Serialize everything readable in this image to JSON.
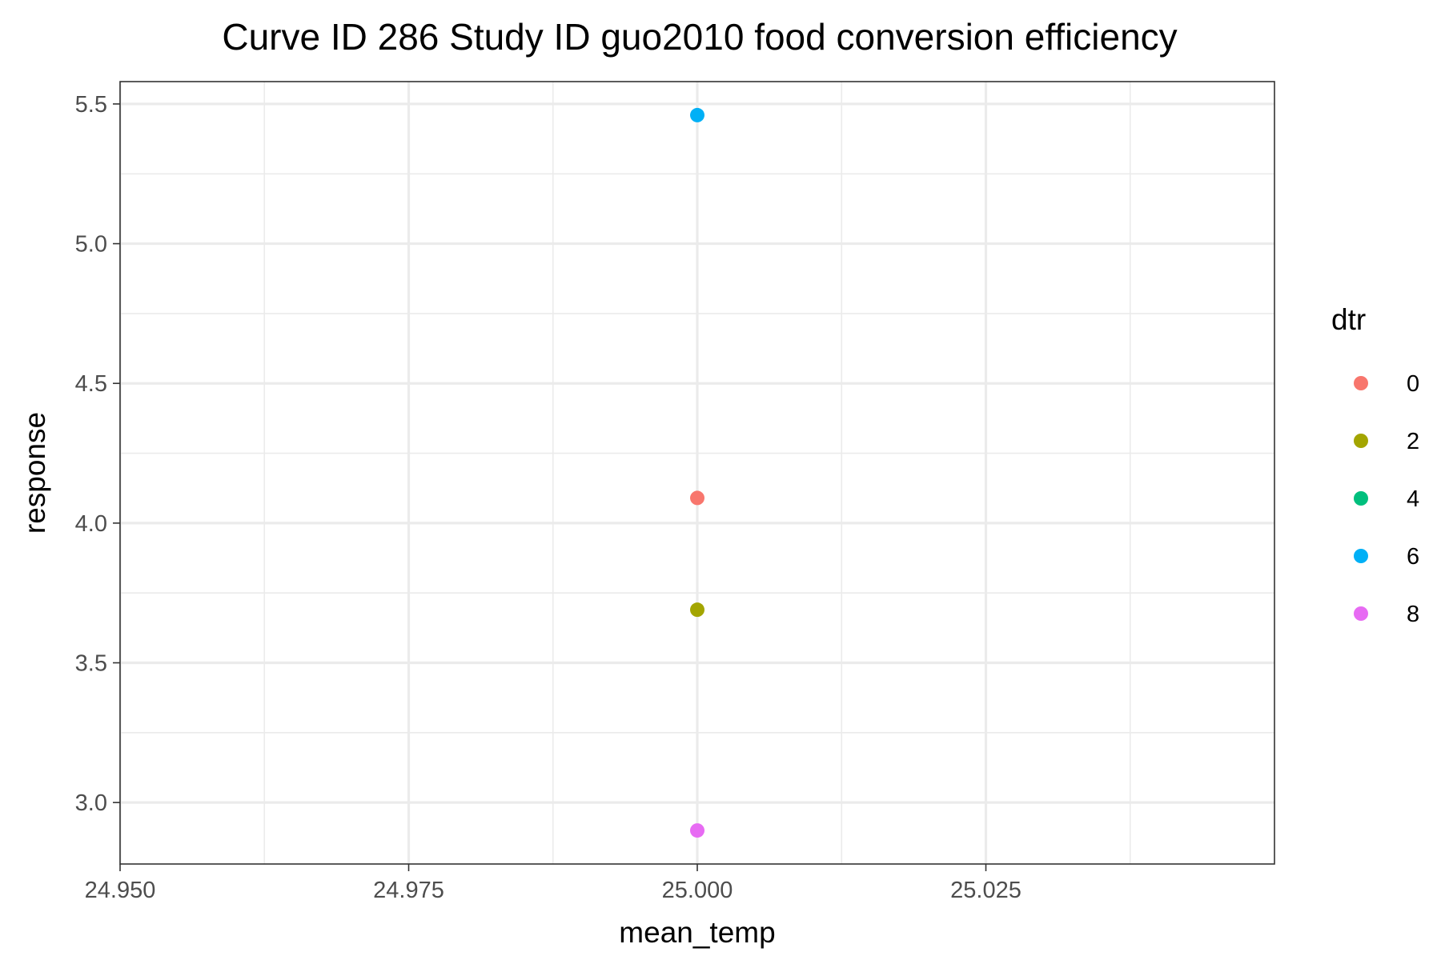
{
  "chart_data": {
    "type": "scatter",
    "title": "Curve ID 286 Study ID guo2010 food conversion efficiency",
    "xlabel": "mean_temp",
    "ylabel": "response",
    "xlim": [
      24.95,
      25.05
    ],
    "ylim": [
      2.78,
      5.58
    ],
    "x_ticks": [
      24.95,
      24.975,
      25.0,
      25.025
    ],
    "x_tick_labels": [
      "24.950",
      "24.975",
      "25.000",
      "25.025"
    ],
    "y_ticks": [
      3.0,
      3.5,
      4.0,
      4.5,
      5.0,
      5.5
    ],
    "y_tick_labels": [
      "3.0",
      "3.5",
      "4.0",
      "4.5",
      "5.0",
      "5.5"
    ],
    "grid": true,
    "legend": {
      "title": "dtr",
      "position": "right",
      "entries": [
        {
          "label": "0",
          "color": "#F8766D"
        },
        {
          "label": "2",
          "color": "#A3A500"
        },
        {
          "label": "4",
          "color": "#00BF7D"
        },
        {
          "label": "6",
          "color": "#00B0F6"
        },
        {
          "label": "8",
          "color": "#E76BF3"
        }
      ]
    },
    "points": [
      {
        "x": 25.0,
        "y": 5.46,
        "dtr": "6",
        "color": "#00B0F6"
      },
      {
        "x": 25.0,
        "y": 4.09,
        "dtr": "0",
        "color": "#F8766D"
      },
      {
        "x": 25.0,
        "y": 3.69,
        "dtr": "2",
        "color": "#A3A500"
      },
      {
        "x": 25.0,
        "y": 2.9,
        "dtr": "8",
        "color": "#E76BF3"
      }
    ]
  }
}
